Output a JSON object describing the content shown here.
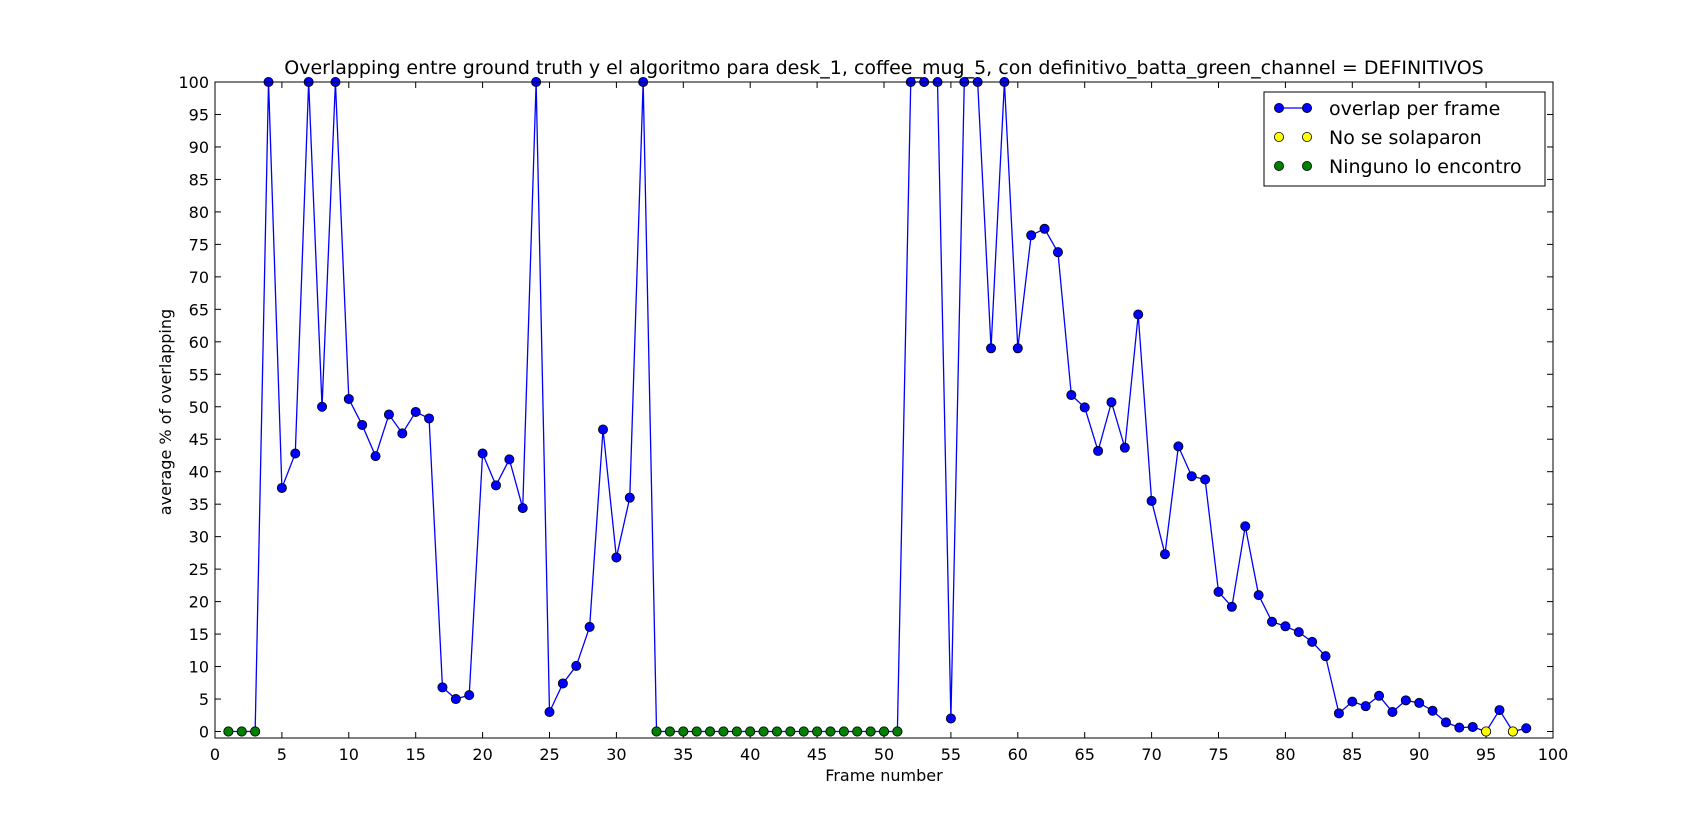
{
  "chart_data": {
    "type": "line",
    "title": "Overlapping entre ground truth y el algoritmo para desk_1, coffee_mug_5, con definitivo_batta_green_channel = DEFINITIVOS",
    "xlabel": "Frame number",
    "ylabel": "average % of overlapping",
    "xlim": [
      0,
      100
    ],
    "ylim": [
      -1,
      100
    ],
    "xticks": [
      0,
      5,
      10,
      15,
      20,
      25,
      30,
      35,
      40,
      45,
      50,
      55,
      60,
      65,
      70,
      75,
      80,
      85,
      90,
      95,
      100
    ],
    "yticks": [
      0,
      5,
      10,
      15,
      20,
      25,
      30,
      35,
      40,
      45,
      50,
      55,
      60,
      65,
      70,
      75,
      80,
      85,
      90,
      95,
      100
    ],
    "grid": false,
    "legend_position": "top-right",
    "series": [
      {
        "name": "overlap per frame",
        "style": "line-markers",
        "color": "#0000ff",
        "x": [
          1,
          2,
          3,
          4,
          5,
          6,
          7,
          8,
          9,
          10,
          11,
          12,
          13,
          14,
          15,
          16,
          17,
          18,
          19,
          20,
          21,
          22,
          23,
          24,
          25,
          26,
          27,
          28,
          29,
          30,
          31,
          32,
          33,
          34,
          35,
          36,
          37,
          38,
          39,
          40,
          41,
          42,
          43,
          44,
          45,
          46,
          47,
          48,
          49,
          50,
          51,
          52,
          53,
          54,
          55,
          56,
          57,
          58,
          59,
          60,
          61,
          62,
          63,
          64,
          65,
          66,
          67,
          68,
          69,
          70,
          71,
          72,
          73,
          74,
          75,
          76,
          77,
          78,
          79,
          80,
          81,
          82,
          83,
          84,
          85,
          86,
          87,
          88,
          89,
          90,
          91,
          92,
          93,
          94,
          95,
          96,
          97,
          98
        ],
        "y": [
          0,
          0,
          0,
          100,
          37.5,
          42.8,
          100,
          50,
          100,
          51.2,
          47.2,
          42.4,
          48.8,
          45.9,
          49.2,
          48.2,
          6.8,
          5,
          5.6,
          42.8,
          37.9,
          41.9,
          34.4,
          100,
          3,
          7.4,
          10.1,
          16.1,
          46.5,
          26.8,
          36,
          100,
          0,
          0,
          0,
          0,
          0,
          0,
          0,
          0,
          0,
          0,
          0,
          0,
          0,
          0,
          0,
          0,
          0,
          0,
          0,
          100,
          100,
          100,
          2,
          100,
          100,
          59,
          100,
          59,
          76.4,
          77.4,
          73.8,
          51.8,
          49.9,
          43.2,
          50.7,
          43.7,
          64.2,
          35.5,
          27.3,
          43.9,
          39.3,
          38.8,
          21.5,
          19.2,
          31.6,
          21,
          16.9,
          16.2,
          15.3,
          13.8,
          11.6,
          2.8,
          4.6,
          3.9,
          5.5,
          3,
          4.8,
          4.4,
          3.2,
          1.4,
          0.6,
          0.7,
          0,
          3.3,
          0,
          0.5
        ]
      },
      {
        "name": "No se solaparon",
        "style": "markers",
        "color": "#ffff00",
        "x": [
          95,
          97
        ],
        "y": [
          0,
          0
        ]
      },
      {
        "name": "Ninguno lo encontro",
        "style": "markers",
        "color": "#008000",
        "x": [
          1,
          2,
          3,
          33,
          34,
          35,
          36,
          37,
          38,
          39,
          40,
          41,
          42,
          43,
          44,
          45,
          46,
          47,
          48,
          49,
          50,
          51
        ],
        "y": [
          0,
          0,
          0,
          0,
          0,
          0,
          0,
          0,
          0,
          0,
          0,
          0,
          0,
          0,
          0,
          0,
          0,
          0,
          0,
          0,
          0,
          0
        ]
      }
    ]
  }
}
